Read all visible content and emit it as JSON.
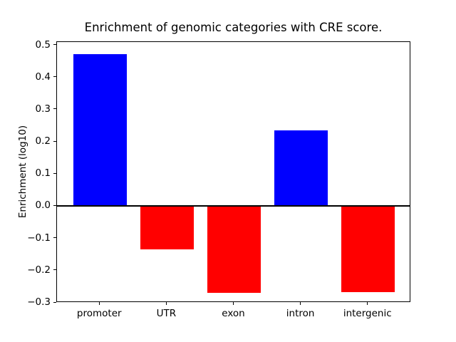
{
  "window": {
    "background": "#ffffff"
  },
  "chart_data": {
    "type": "bar",
    "title": "Enrichment of genomic categories with CRE score.",
    "xlabel": "",
    "ylabel": "Enrichment (log10)",
    "categories": [
      "promoter",
      "UTR",
      "exon",
      "intron",
      "intergenic"
    ],
    "values": [
      0.473,
      -0.133,
      -0.269,
      0.235,
      -0.267
    ],
    "bar_colors": [
      "#0000ff",
      "#ff0000",
      "#ff0000",
      "#0000ff",
      "#ff0000"
    ],
    "positive_color": "#0000ff",
    "negative_color": "#ff0000",
    "ylim": [
      -0.3,
      0.51
    ],
    "yticks": [
      -0.3,
      -0.2,
      -0.1,
      0.0,
      0.1,
      0.2,
      0.3,
      0.4,
      0.5
    ],
    "ytick_labels": [
      "−0.3",
      "−0.2",
      "−0.1",
      "0.0",
      "0.1",
      "0.2",
      "0.3",
      "0.4",
      "0.5"
    ],
    "xlim": [
      -0.64,
      4.64
    ],
    "bar_width": 0.8,
    "grid": false,
    "legend_position": "none",
    "zero_line": true,
    "axis_color": "#000000",
    "text_color": "#000000"
  }
}
